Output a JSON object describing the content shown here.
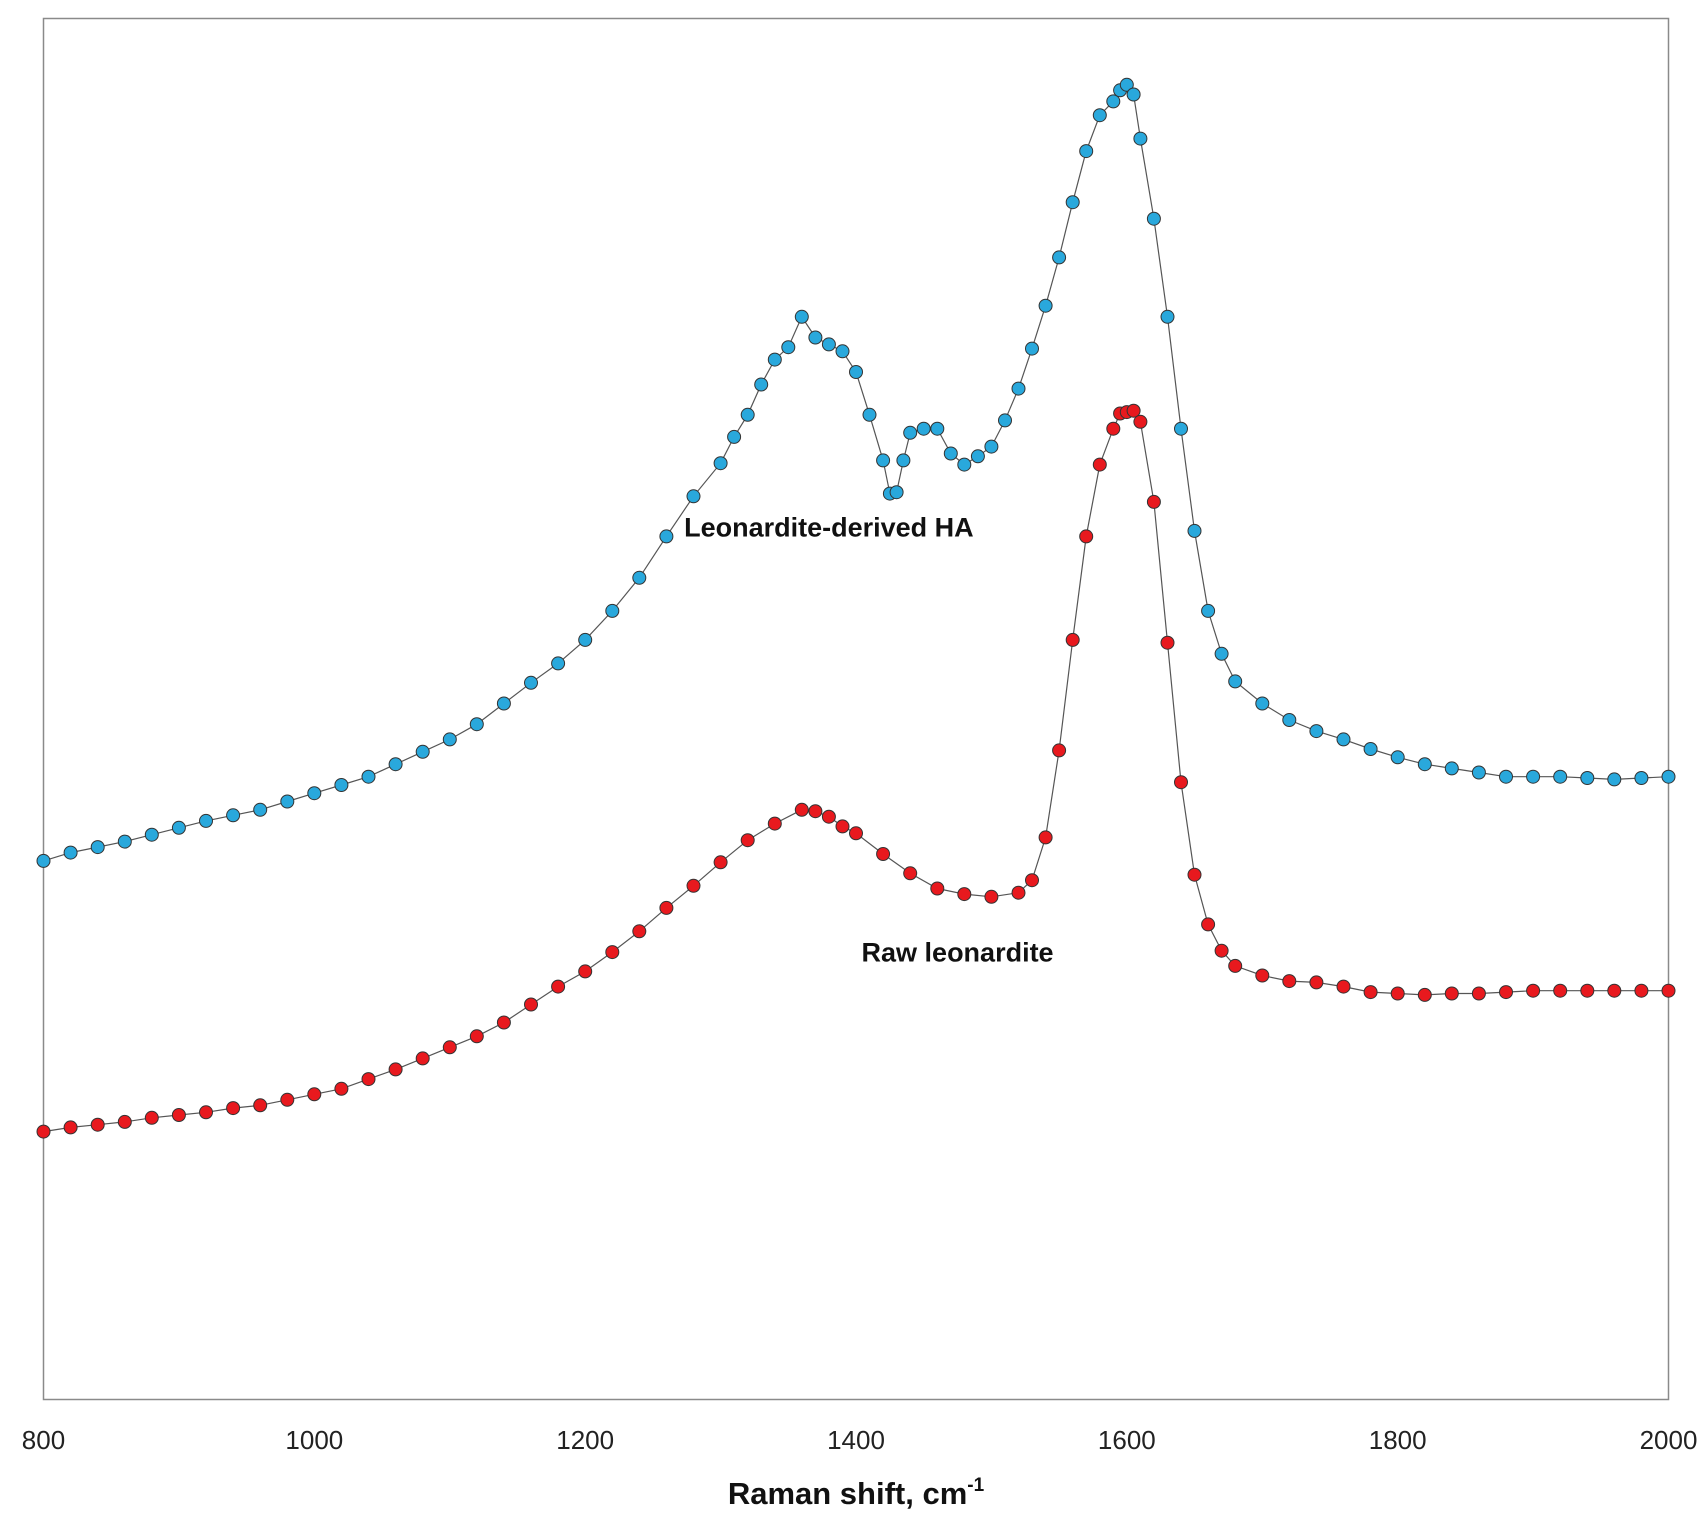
{
  "chart_data": {
    "type": "scatter",
    "title": "",
    "xlabel": "Raman shift, cm",
    "xlabel_superscript": "-1",
    "ylabel": "",
    "xlim": [
      800,
      2000
    ],
    "ylim": [
      0,
      100
    ],
    "x_ticks": [
      "800",
      "1000",
      "1200",
      "1400",
      "1600",
      "1800",
      "2000"
    ],
    "x_tick_values": [
      800,
      1000,
      1200,
      1400,
      1600,
      1800,
      2000
    ],
    "grid": false,
    "legend": "none",
    "annotations": [
      {
        "text": "Leonardite-derived HA",
        "x": 1380,
        "y": 62.5
      },
      {
        "text": "Raw leonardite",
        "x": 1475,
        "y": 31.7
      }
    ],
    "series": [
      {
        "label": "Leonardite-derived HA",
        "marker_color": "#29a8dc",
        "line_color": "#555555",
        "x": [
          800,
          820,
          840,
          860,
          880,
          900,
          920,
          940,
          960,
          980,
          1000,
          1020,
          1040,
          1060,
          1080,
          1100,
          1120,
          1140,
          1160,
          1180,
          1200,
          1220,
          1240,
          1260,
          1280,
          1300,
          1310,
          1320,
          1330,
          1340,
          1350,
          1360,
          1370,
          1380,
          1390,
          1400,
          1410,
          1420,
          1425,
          1430,
          1435,
          1440,
          1450,
          1460,
          1470,
          1480,
          1490,
          1500,
          1510,
          1520,
          1530,
          1540,
          1550,
          1560,
          1570,
          1580,
          1590,
          1595,
          1600,
          1605,
          1610,
          1620,
          1630,
          1640,
          1650,
          1660,
          1670,
          1680,
          1700,
          1720,
          1740,
          1760,
          1780,
          1800,
          1820,
          1840,
          1860,
          1880,
          1900,
          1920,
          1940,
          1960,
          1980,
          2000
        ],
        "y": [
          39.0,
          39.6,
          40.0,
          40.4,
          40.9,
          41.4,
          41.9,
          42.3,
          42.7,
          43.3,
          43.9,
          44.5,
          45.1,
          46.0,
          46.9,
          47.8,
          48.9,
          50.4,
          51.9,
          53.3,
          55.0,
          57.1,
          59.5,
          62.5,
          65.4,
          67.8,
          69.7,
          71.3,
          73.5,
          75.3,
          76.2,
          78.4,
          76.9,
          76.4,
          75.9,
          74.4,
          71.3,
          68.0,
          65.6,
          65.7,
          68.0,
          70.0,
          70.3,
          70.3,
          68.5,
          67.7,
          68.3,
          69.0,
          70.9,
          73.2,
          76.1,
          79.2,
          82.7,
          86.7,
          90.4,
          93.0,
          94.0,
          94.8,
          95.2,
          94.5,
          91.3,
          85.5,
          78.4,
          70.3,
          62.9,
          57.1,
          54.0,
          52.0,
          50.4,
          49.2,
          48.4,
          47.8,
          47.1,
          46.5,
          46.0,
          45.7,
          45.4,
          45.1,
          45.1,
          45.1,
          45.0,
          44.9,
          45.0,
          45.1
        ]
      },
      {
        "label": "Raw leonardite",
        "marker_color": "#e8191e",
        "line_color": "#555555",
        "x": [
          800,
          820,
          840,
          860,
          880,
          900,
          920,
          940,
          960,
          980,
          1000,
          1020,
          1040,
          1060,
          1080,
          1100,
          1120,
          1140,
          1160,
          1180,
          1200,
          1220,
          1240,
          1260,
          1280,
          1300,
          1320,
          1340,
          1360,
          1370,
          1380,
          1390,
          1400,
          1420,
          1440,
          1460,
          1480,
          1500,
          1520,
          1530,
          1540,
          1550,
          1560,
          1570,
          1580,
          1590,
          1595,
          1600,
          1605,
          1610,
          1620,
          1630,
          1640,
          1650,
          1660,
          1670,
          1680,
          1700,
          1720,
          1740,
          1760,
          1780,
          1800,
          1820,
          1840,
          1860,
          1880,
          1900,
          1920,
          1940,
          1960,
          1980,
          2000
        ],
        "y": [
          19.4,
          19.7,
          19.9,
          20.1,
          20.4,
          20.6,
          20.8,
          21.1,
          21.3,
          21.7,
          22.1,
          22.5,
          23.2,
          23.9,
          24.7,
          25.5,
          26.3,
          27.3,
          28.6,
          29.9,
          31.0,
          32.4,
          33.9,
          35.6,
          37.2,
          38.9,
          40.5,
          41.7,
          42.7,
          42.6,
          42.2,
          41.5,
          41.0,
          39.5,
          38.1,
          37.0,
          36.6,
          36.4,
          36.7,
          37.6,
          40.7,
          47.0,
          55.0,
          62.5,
          67.7,
          70.3,
          71.4,
          71.5,
          71.6,
          70.8,
          65.0,
          54.8,
          44.7,
          38.0,
          34.4,
          32.5,
          31.4,
          30.7,
          30.3,
          30.2,
          29.9,
          29.5,
          29.4,
          29.3,
          29.4,
          29.4,
          29.5,
          29.6,
          29.6,
          29.6,
          29.6,
          29.6,
          29.6
        ]
      }
    ]
  }
}
